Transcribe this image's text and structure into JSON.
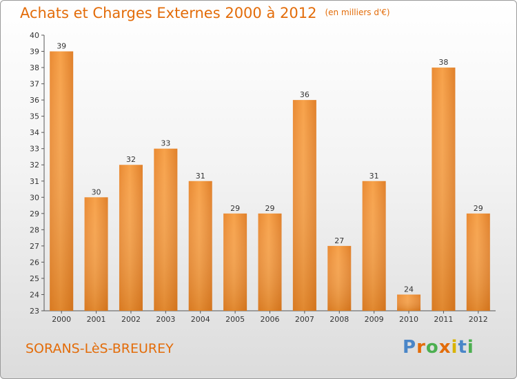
{
  "title": "Achats et Charges Externes 2000 à 2012",
  "unit": "(en milliers d'€)",
  "commune": "SORANS-LèS-BREUREY",
  "brand": {
    "text": "Proxiti",
    "colors": [
      "#4a86c8",
      "#e36c09",
      "#4caf50",
      "#e36c09",
      "#d9b300",
      "#4a86c8",
      "#4caf50"
    ]
  },
  "chart_data": {
    "type": "bar",
    "title": "Achats et Charges Externes 2000 à 2012",
    "subtitle": "(en milliers d'€)",
    "categories": [
      "2000",
      "2001",
      "2002",
      "2003",
      "2004",
      "2005",
      "2006",
      "2007",
      "2008",
      "2009",
      "2010",
      "2011",
      "2012"
    ],
    "values": [
      39,
      30,
      32,
      33,
      31,
      29,
      29,
      36,
      27,
      31,
      24,
      38,
      29
    ],
    "ylim": [
      23,
      40
    ],
    "yticks": [
      23,
      24,
      25,
      26,
      27,
      28,
      29,
      30,
      31,
      32,
      33,
      34,
      35,
      36,
      37,
      38,
      39,
      40
    ],
    "grid": false,
    "bar_color": "#f7a24a"
  }
}
